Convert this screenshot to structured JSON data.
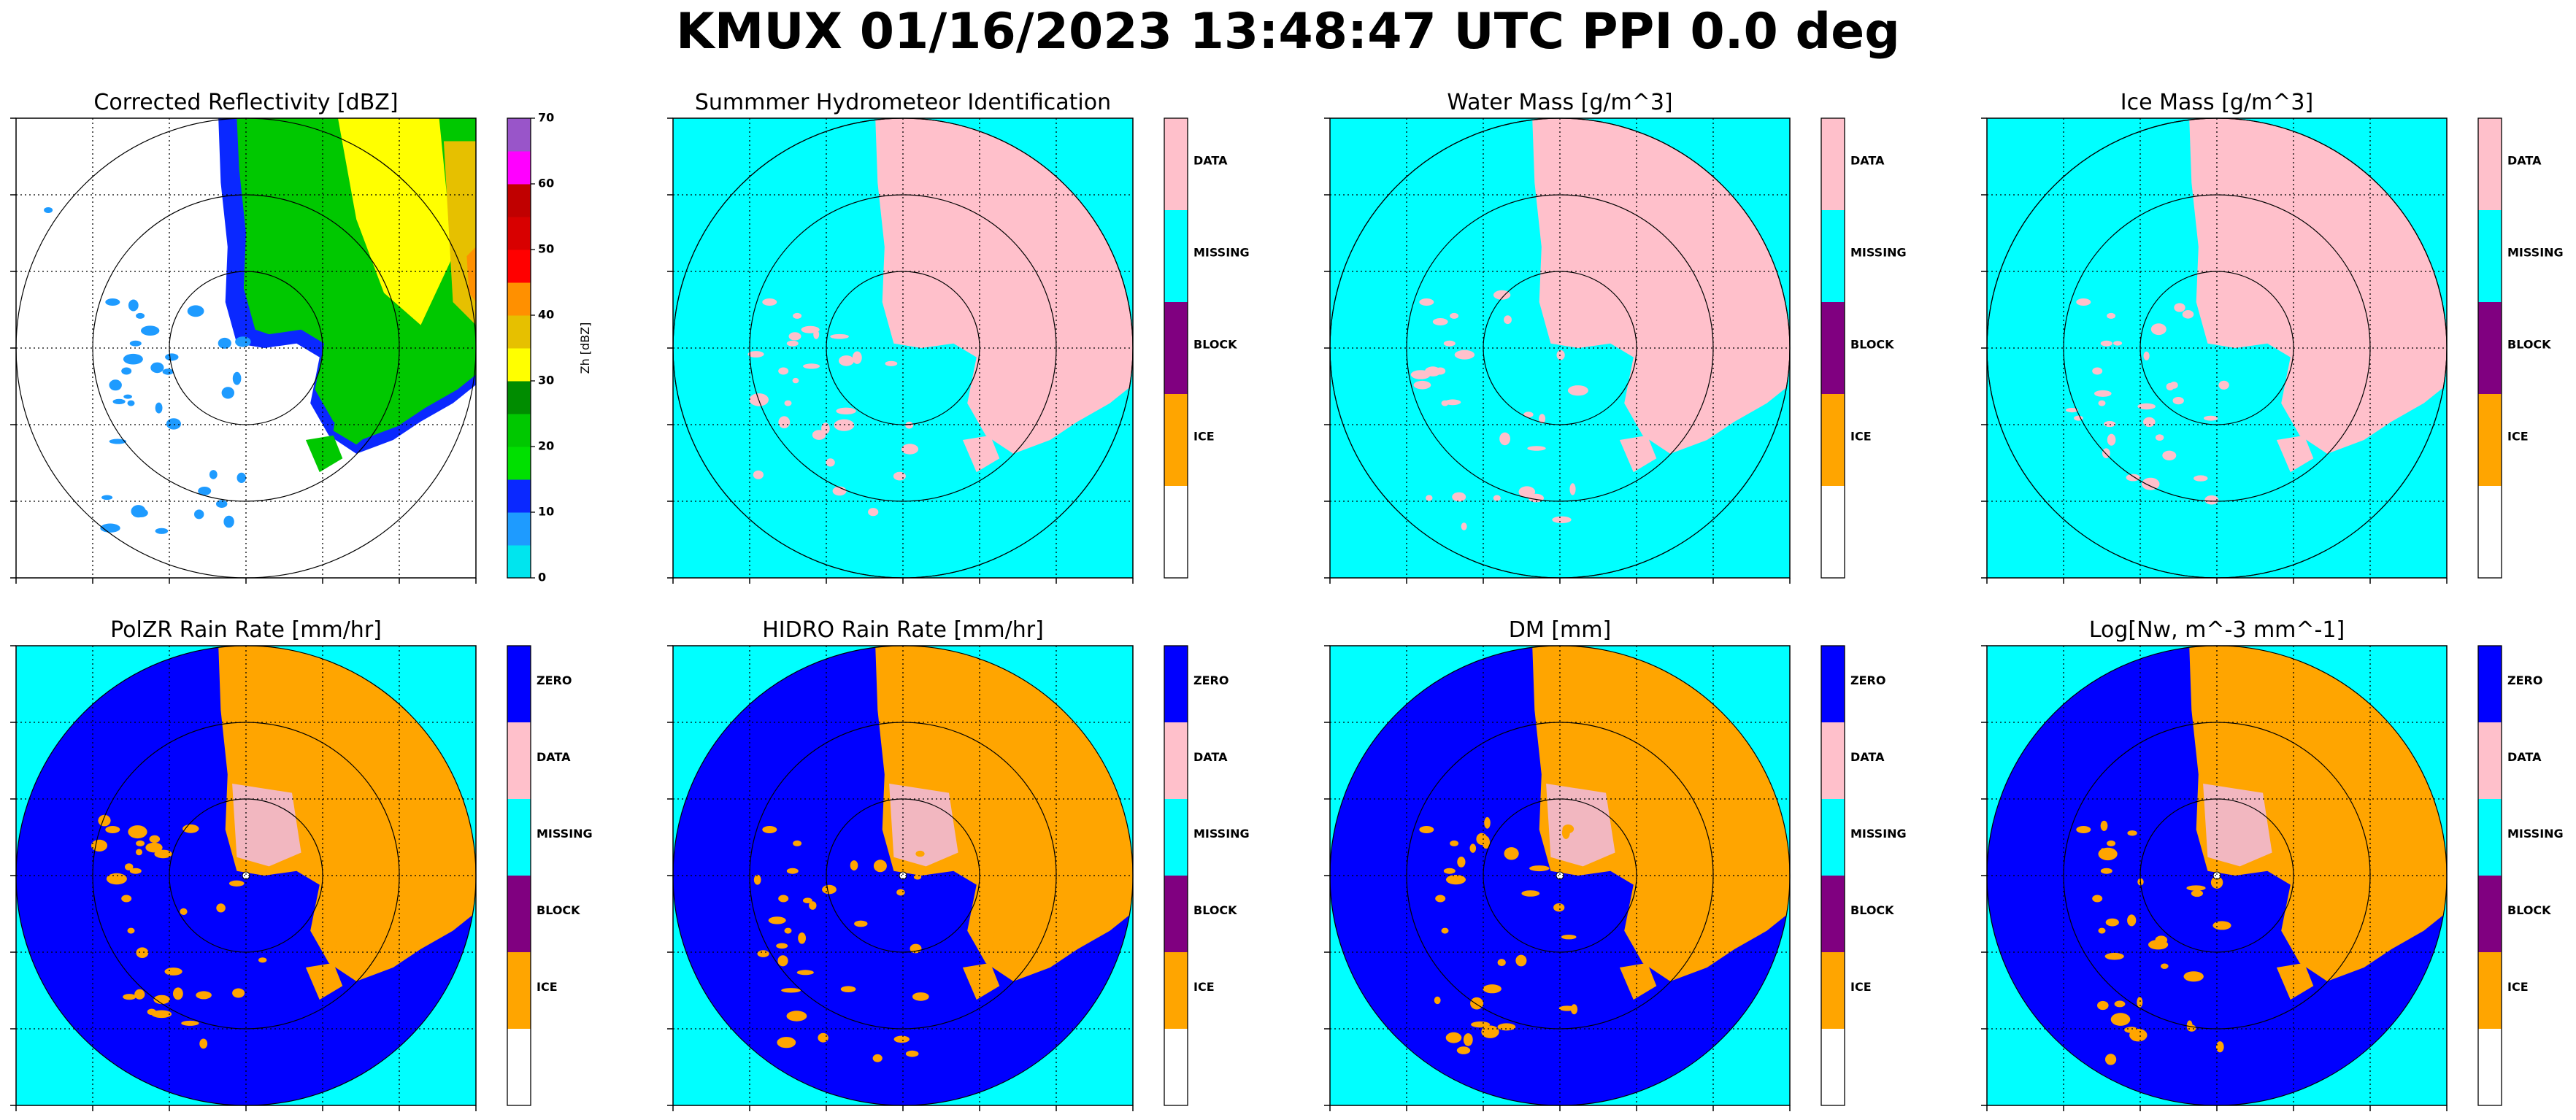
{
  "figure": {
    "title": "KMUX 01/16/2023 13:48:47 UTC PPI 0.0 deg"
  },
  "colors": {
    "cyan": "#00ffff",
    "pink": "#ffc0cb",
    "purple": "#800080",
    "orange": "#ffa500",
    "blue": "#0000ff",
    "white": "#ffffff"
  },
  "chart_data": [
    {
      "type": "heatmap",
      "title": "Corrected Reflectivity [dBZ]",
      "field": "reflectivity",
      "grid": true,
      "range_rings": 3,
      "colorbar": {
        "kind": "continuous",
        "label": "Zh [dBZ]",
        "ticks": [
          "0",
          "10",
          "20",
          "30",
          "40",
          "50",
          "60",
          "70"
        ],
        "range": [
          0,
          70
        ],
        "colors": [
          "#00e5ee",
          "#1e9bff",
          "#0a28ff",
          "#00e000",
          "#00c800",
          "#008c00",
          "#ffff00",
          "#e6c000",
          "#ff9000",
          "#ff0000",
          "#d80000",
          "#c00000",
          "#ff00ff",
          "#9955c9"
        ]
      }
    },
    {
      "type": "heatmap",
      "title": "Summmer Hydrometeor Identification",
      "field": "category",
      "grid": true,
      "range_rings": 3,
      "colorbar": {
        "kind": "categorical",
        "categories": [
          "DATA",
          "MISSING",
          "BLOCK",
          "ICE",
          ""
        ],
        "colors": [
          "#ffc0cb",
          "#00ffff",
          "#800080",
          "#ffa500",
          "#ffffff"
        ]
      }
    },
    {
      "type": "heatmap",
      "title": "Water Mass [g/m^3]",
      "field": "category",
      "grid": true,
      "range_rings": 3,
      "colorbar": {
        "kind": "categorical",
        "categories": [
          "DATA",
          "MISSING",
          "BLOCK",
          "ICE",
          ""
        ],
        "colors": [
          "#ffc0cb",
          "#00ffff",
          "#800080",
          "#ffa500",
          "#ffffff"
        ]
      }
    },
    {
      "type": "heatmap",
      "title": "Ice Mass [g/m^3]",
      "field": "category",
      "grid": true,
      "range_rings": 3,
      "colorbar": {
        "kind": "categorical",
        "categories": [
          "DATA",
          "MISSING",
          "BLOCK",
          "ICE",
          ""
        ],
        "colors": [
          "#ffc0cb",
          "#00ffff",
          "#800080",
          "#ffa500",
          "#ffffff"
        ]
      }
    },
    {
      "type": "heatmap",
      "title": "PolZR Rain Rate [mm/hr]",
      "field": "rainrate",
      "grid": true,
      "range_rings": 3,
      "colorbar": {
        "kind": "categorical",
        "categories": [
          "ZERO",
          "DATA",
          "MISSING",
          "BLOCK",
          "ICE",
          ""
        ],
        "colors": [
          "#0000ff",
          "#ffc0cb",
          "#00ffff",
          "#800080",
          "#ffa500",
          "#ffffff"
        ]
      }
    },
    {
      "type": "heatmap",
      "title": "HIDRO Rain Rate [mm/hr]",
      "field": "rainrate",
      "grid": true,
      "range_rings": 3,
      "colorbar": {
        "kind": "categorical",
        "categories": [
          "ZERO",
          "DATA",
          "MISSING",
          "BLOCK",
          "ICE",
          ""
        ],
        "colors": [
          "#0000ff",
          "#ffc0cb",
          "#00ffff",
          "#800080",
          "#ffa500",
          "#ffffff"
        ]
      }
    },
    {
      "type": "heatmap",
      "title": "DM [mm]",
      "field": "rainrate",
      "grid": true,
      "range_rings": 3,
      "colorbar": {
        "kind": "categorical",
        "categories": [
          "ZERO",
          "DATA",
          "MISSING",
          "BLOCK",
          "ICE",
          ""
        ],
        "colors": [
          "#0000ff",
          "#ffc0cb",
          "#00ffff",
          "#800080",
          "#ffa500",
          "#ffffff"
        ]
      }
    },
    {
      "type": "heatmap",
      "title": "Log[Nw, m^-3 mm^-1]",
      "field": "rainrate",
      "grid": true,
      "range_rings": 3,
      "colorbar": {
        "kind": "categorical",
        "categories": [
          "ZERO",
          "DATA",
          "MISSING",
          "BLOCK",
          "ICE",
          ""
        ],
        "colors": [
          "#0000ff",
          "#ffc0cb",
          "#00ffff",
          "#800080",
          "#ffa500",
          "#ffffff"
        ]
      }
    }
  ]
}
